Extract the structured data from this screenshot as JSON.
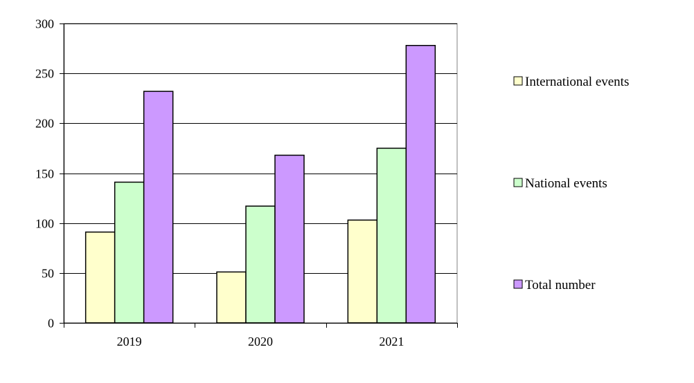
{
  "chart_data": {
    "type": "bar",
    "title": "",
    "xlabel": "",
    "ylabel": "",
    "categories": [
      "2019",
      "2020",
      "2021"
    ],
    "series": [
      {
        "name": "International events",
        "values": [
          91,
          51,
          103
        ],
        "color": "#ffffcc"
      },
      {
        "name": "National events",
        "values": [
          141,
          117,
          175
        ],
        "color": "#ccffcc"
      },
      {
        "name": "Total number",
        "values": [
          232,
          168,
          278
        ],
        "color": "#cc99ff"
      }
    ],
    "ylim": [
      0,
      300
    ],
    "yticks": [
      "0",
      "50",
      "100",
      "150",
      "200",
      "250",
      "300"
    ],
    "grid": true,
    "legend_position": "right"
  }
}
